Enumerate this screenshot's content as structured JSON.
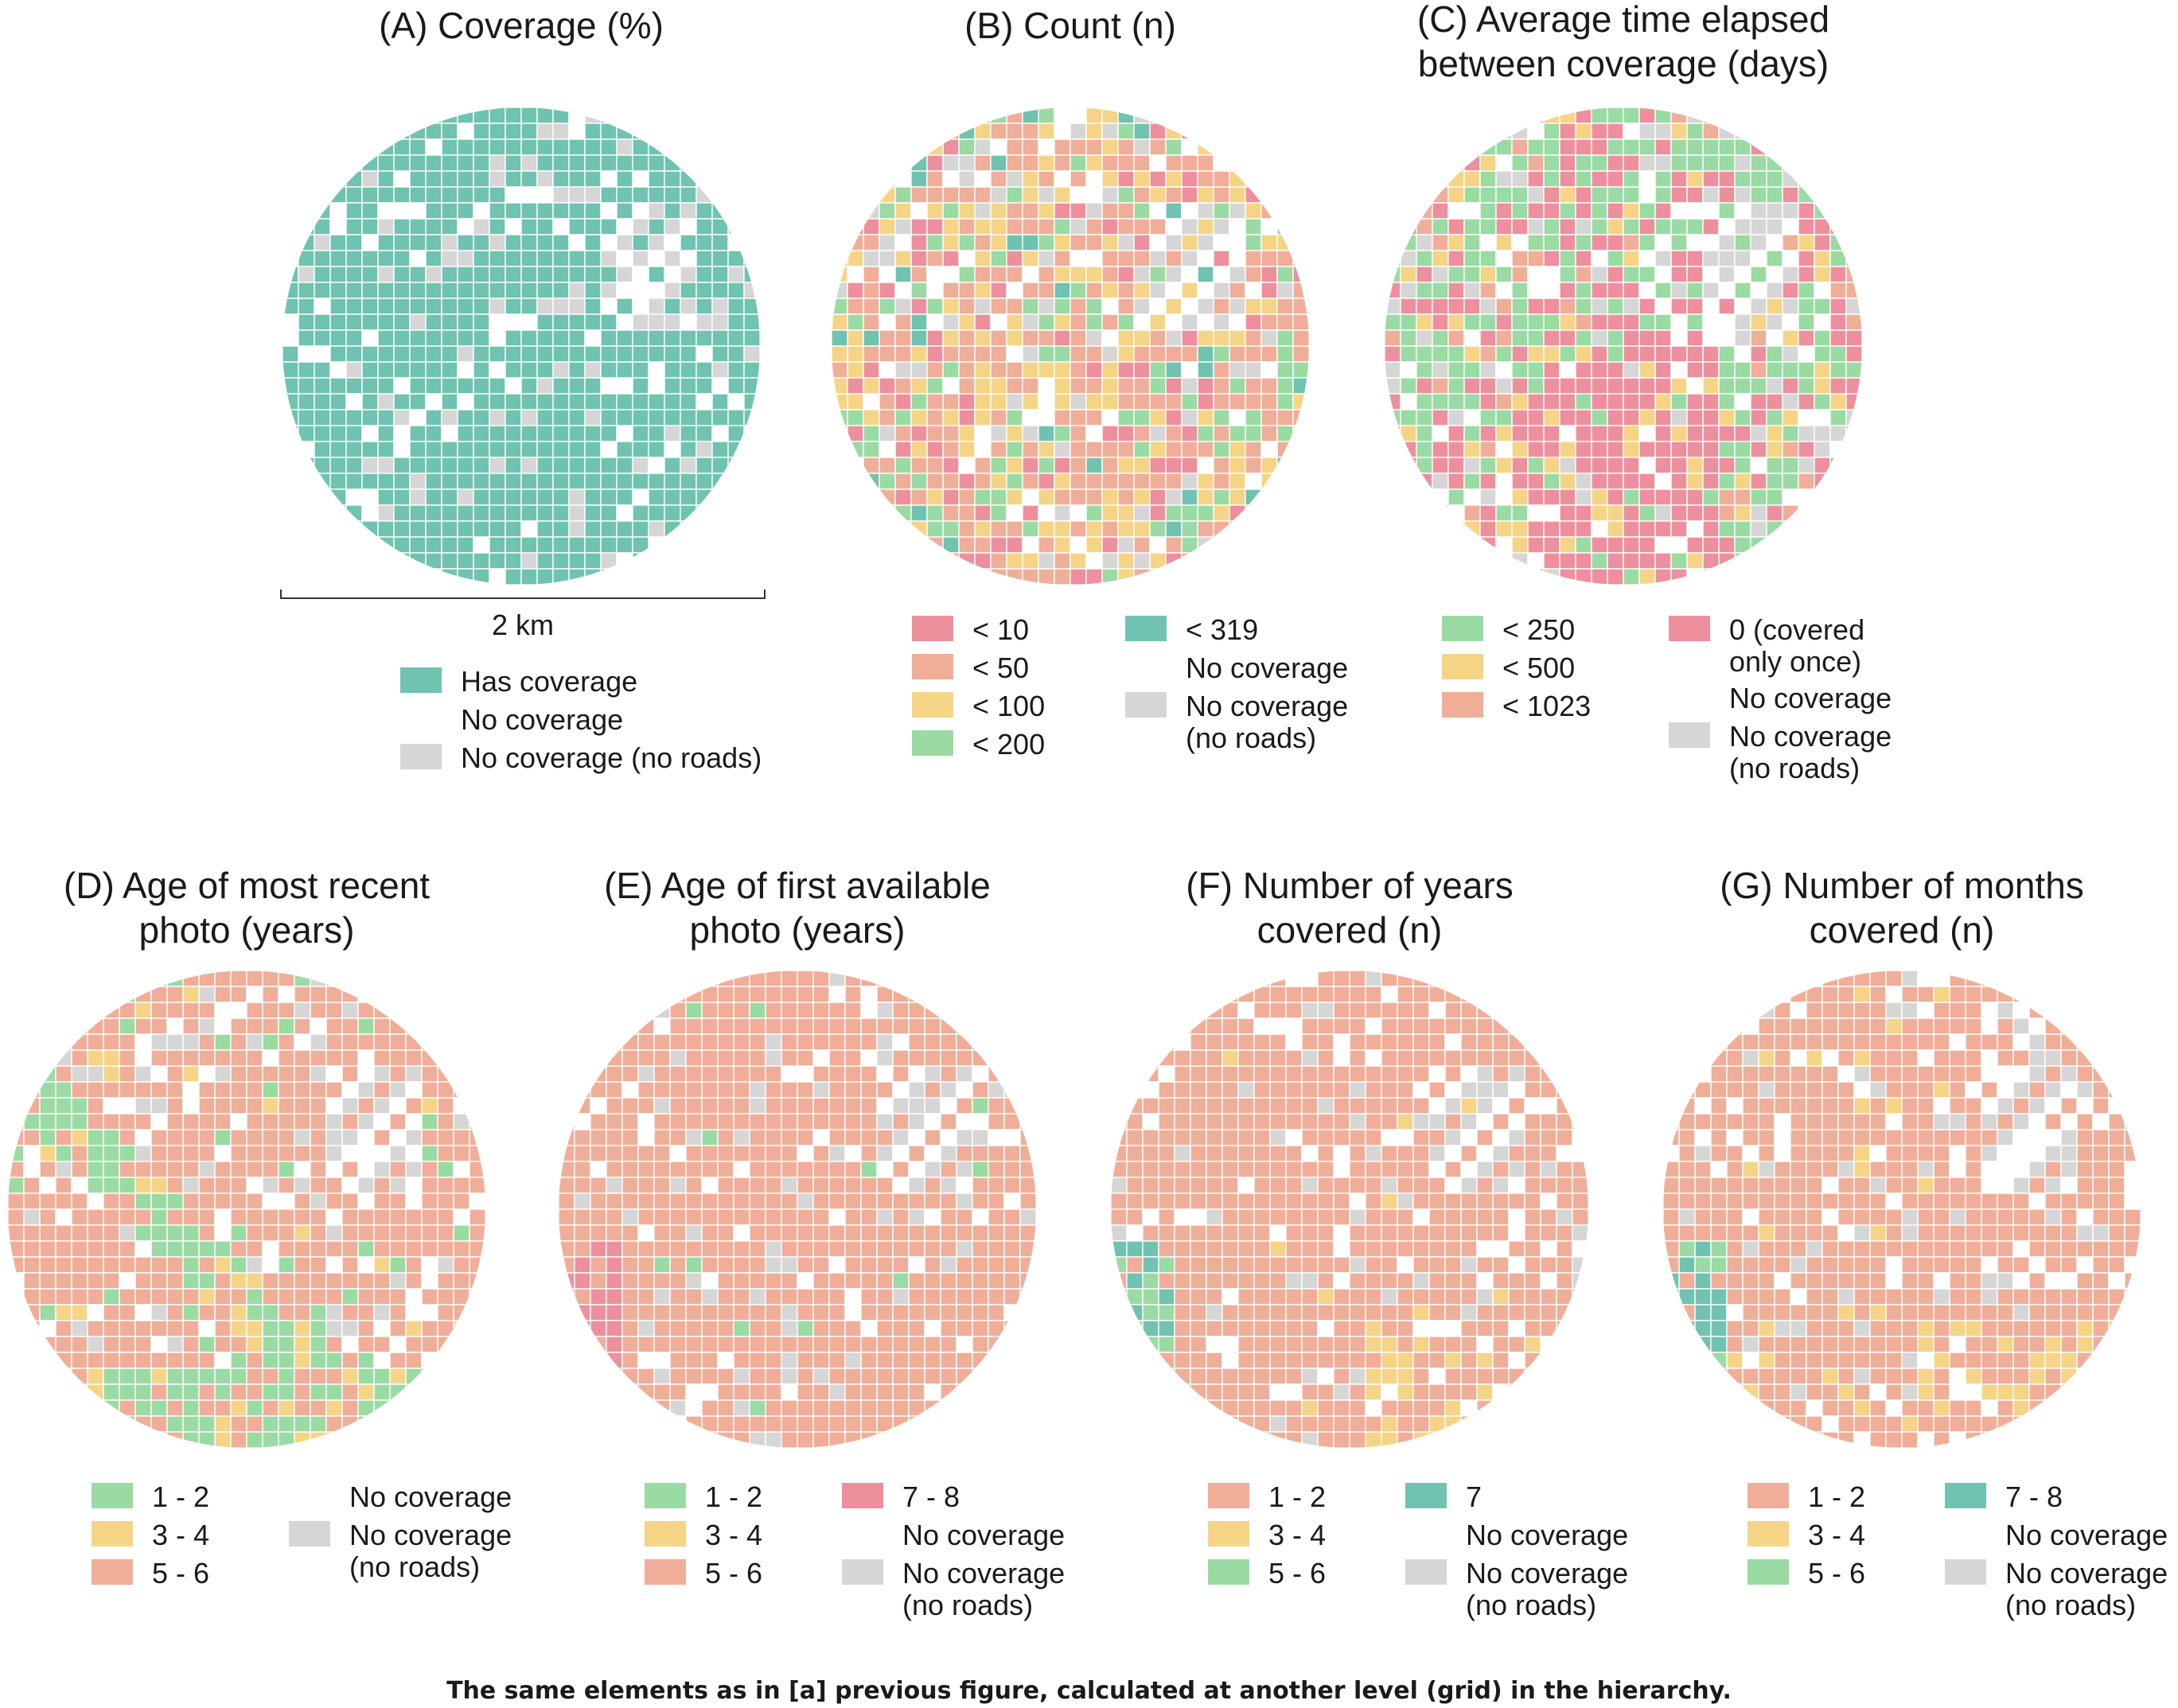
{
  "colors": {
    "teal": "#6fc3b0",
    "red": "#ee8f9d",
    "salmon": "#f0ae98",
    "yellow": "#f6d486",
    "green": "#9adba3",
    "white": "#ffffff",
    "grey": "#d6d6d6"
  },
  "chart_data": [
    {
      "id": "A",
      "type": "heatmap",
      "title": "(A) Coverage (%)",
      "legend": [
        {
          "label": "Has coverage",
          "color": "teal"
        },
        {
          "label": "No coverage",
          "color": "white"
        },
        {
          "label": "No coverage (no roads)",
          "color": "grey"
        }
      ],
      "scale_bar": "2 km"
    },
    {
      "id": "B",
      "type": "heatmap",
      "title": "(B) Count (n)",
      "legend": [
        {
          "label": "< 10",
          "color": "red"
        },
        {
          "label": "< 50",
          "color": "salmon"
        },
        {
          "label": "< 100",
          "color": "yellow"
        },
        {
          "label": "< 200",
          "color": "green"
        },
        {
          "label": "< 319",
          "color": "teal"
        },
        {
          "label": "No coverage",
          "color": "white"
        },
        {
          "label": "No coverage\n(no roads)",
          "color": "grey"
        }
      ]
    },
    {
      "id": "C",
      "type": "heatmap",
      "title": "(C) Average time elapsed\nbetween coverage (days)",
      "legend": [
        {
          "label": "< 250",
          "color": "green"
        },
        {
          "label": "< 500",
          "color": "yellow"
        },
        {
          "label": "< 1023",
          "color": "salmon"
        },
        {
          "label": "0 (covered\nonly once)",
          "color": "red"
        },
        {
          "label": "No coverage",
          "color": "white"
        },
        {
          "label": "No coverage\n(no roads)",
          "color": "grey"
        }
      ]
    },
    {
      "id": "D",
      "type": "heatmap",
      "title": "(D) Age of most recent\nphoto (years)",
      "legend": [
        {
          "label": "1 - 2",
          "color": "green"
        },
        {
          "label": "3 - 4",
          "color": "yellow"
        },
        {
          "label": "5 - 6",
          "color": "salmon"
        },
        {
          "label": "No coverage",
          "color": "white"
        },
        {
          "label": "No coverage\n(no roads)",
          "color": "grey"
        }
      ]
    },
    {
      "id": "E",
      "type": "heatmap",
      "title": "(E) Age of first available\nphoto (years)",
      "legend": [
        {
          "label": "1 - 2",
          "color": "green"
        },
        {
          "label": "3 - 4",
          "color": "yellow"
        },
        {
          "label": "5 - 6",
          "color": "salmon"
        },
        {
          "label": "7 - 8",
          "color": "red"
        },
        {
          "label": "No coverage",
          "color": "white"
        },
        {
          "label": "No coverage\n(no roads)",
          "color": "grey"
        }
      ]
    },
    {
      "id": "F",
      "type": "heatmap",
      "title": "(F) Number of years\ncovered (n)",
      "legend": [
        {
          "label": "1 - 2",
          "color": "salmon"
        },
        {
          "label": "3 - 4",
          "color": "yellow"
        },
        {
          "label": "5 - 6",
          "color": "green"
        },
        {
          "label": "7",
          "color": "teal"
        },
        {
          "label": "No coverage",
          "color": "white"
        },
        {
          "label": "No coverage\n(no roads)",
          "color": "grey"
        }
      ]
    },
    {
      "id": "G",
      "type": "heatmap",
      "title": "(G) Number of months\ncovered (n)",
      "legend": [
        {
          "label": "1 - 2",
          "color": "salmon"
        },
        {
          "label": "3 - 4",
          "color": "yellow"
        },
        {
          "label": "5 - 6",
          "color": "green"
        },
        {
          "label": "7 - 8",
          "color": "teal"
        },
        {
          "label": "No coverage",
          "color": "white"
        },
        {
          "label": "No coverage\n(no roads)",
          "color": "grey"
        }
      ]
    }
  ],
  "caption": "The same elements as in [a] previous figure, calculated at another level (grid) in the hierarchy."
}
